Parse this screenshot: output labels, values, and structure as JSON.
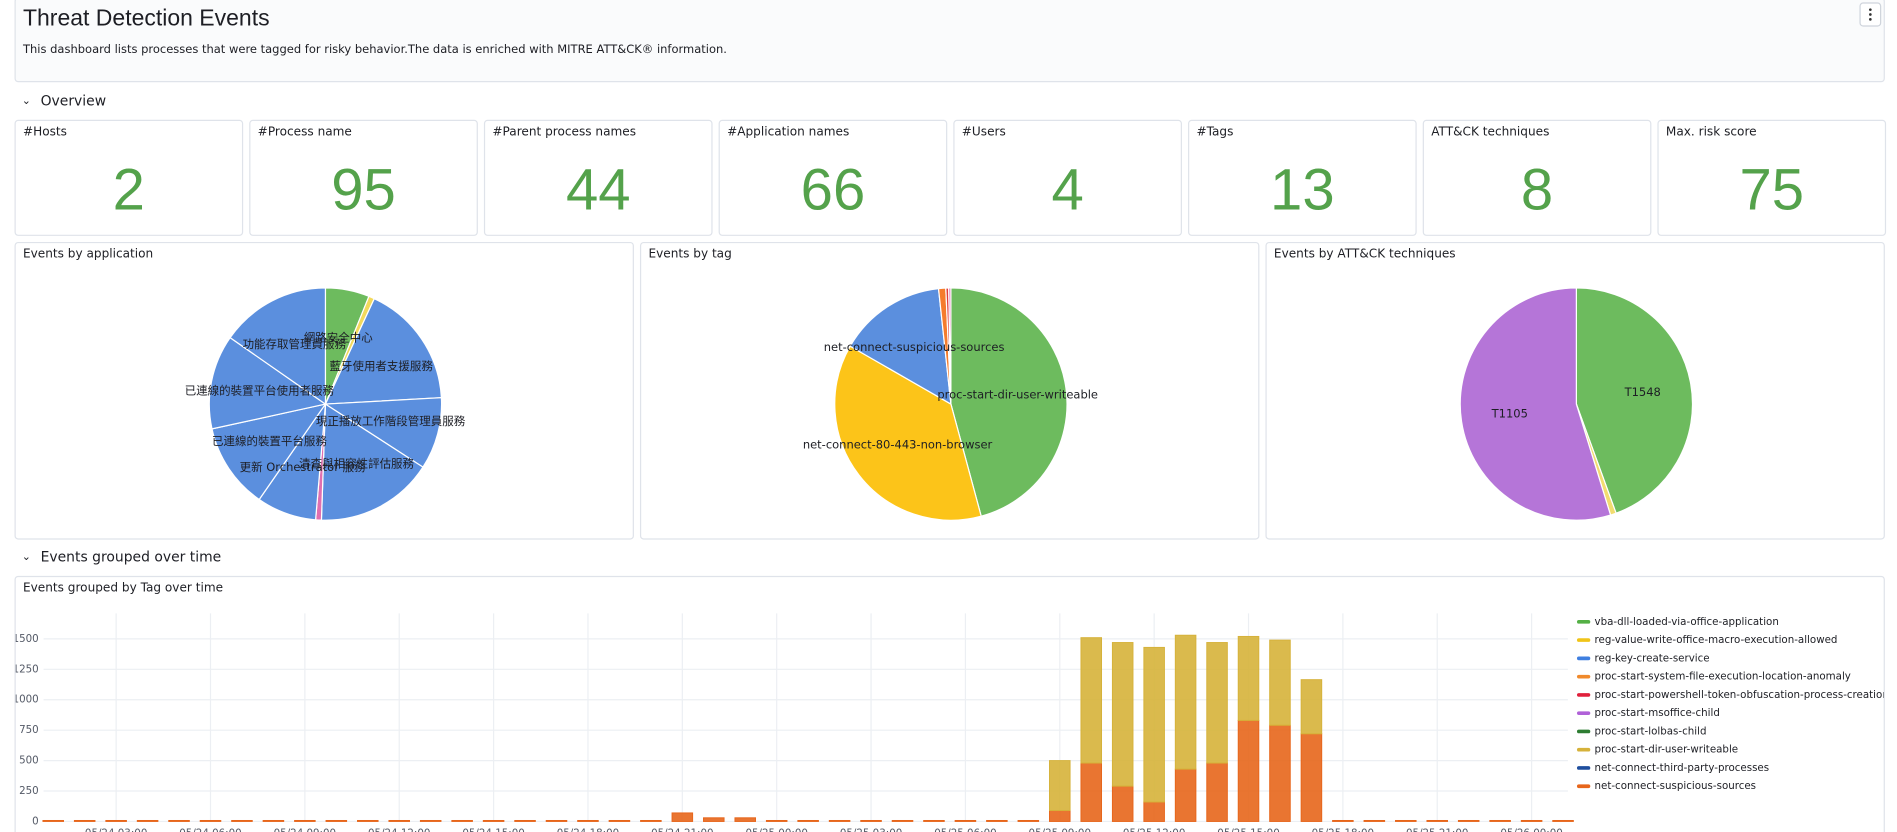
{
  "header": {
    "title": "Threat Detection Events",
    "description": "This dashboard lists processes that were tagged for risky behavior.The data is enriched with MITRE ATT&CK® information."
  },
  "sections": [
    "Overview",
    "Events grouped over time"
  ],
  "stats": [
    {
      "label": "#Hosts",
      "value": 2
    },
    {
      "label": "#Process name",
      "value": 95
    },
    {
      "label": "#Parent process names",
      "value": 44
    },
    {
      "label": "#Application names",
      "value": 66
    },
    {
      "label": "#Users",
      "value": 4
    },
    {
      "label": "#Tags",
      "value": 13
    },
    {
      "label": "ATT&CK techniques",
      "value": 8
    },
    {
      "label": "Max. risk score",
      "value": 75
    }
  ],
  "chart_data": [
    {
      "type": "pie",
      "title": "Events by application",
      "categories": [
        "網路安全中心",
        null,
        "藍牙使用者支援服務",
        "現正播放工作階段管理員服務",
        "清查與相容性評估服務",
        null,
        "更新 Orchestrator 服務",
        "已連線的裝置平台服務",
        "已連線的裝置平台使用者服務",
        "功能存取管理員服務"
      ],
      "values": [
        6.1,
        0.8,
        17.2,
        10,
        16.4,
        0.8,
        8.3,
        11.9,
        13.1,
        15.3
      ],
      "colors": [
        "#6dbb5e",
        "#f2d95c",
        "#5b8fde",
        "#5b8fde",
        "#5b8fde",
        "#e06fb0",
        "#5b8fde",
        "#5b8fde",
        "#5b8fde",
        "#5b8fde"
      ]
    },
    {
      "type": "pie",
      "title": "Events by tag",
      "categories": [
        "proc-start-dir-user-writeable",
        "net-connect-80-443-non-browser",
        "net-connect-suspicious-sources",
        null,
        null,
        null
      ],
      "values": [
        45.8,
        37.5,
        15,
        1,
        0.4,
        0.3
      ],
      "colors": [
        "#6dbb5e",
        "#fcc419",
        "#5b8fde",
        "#f57c2d",
        "#e03e3e",
        "#e06fb0"
      ]
    },
    {
      "type": "pie",
      "title": "Events by ATT&CK techniques",
      "categories": [
        "T1548",
        null,
        "T1105"
      ],
      "values": [
        44.4,
        0.8,
        54.7
      ],
      "colors": [
        "#6dbb5e",
        "#f2dc70",
        "#b575d8"
      ]
    },
    {
      "type": "bar",
      "stacked": true,
      "title": "Events grouped by Tag over time",
      "categories": [
        null,
        null,
        "05/24 03:00",
        null,
        null,
        "05/24 06:00",
        null,
        null,
        "05/24 09:00",
        null,
        null,
        "05/24 12:00",
        null,
        null,
        "05/24 15:00",
        null,
        null,
        "05/24 18:00",
        null,
        null,
        "05/24 21:00",
        null,
        null,
        "05/25 00:00",
        null,
        null,
        "05/25 03:00",
        null,
        null,
        "05/25 06:00",
        null,
        null,
        "05/25 09:00",
        null,
        null,
        "05/25 12:00",
        null,
        null,
        "05/25 15:00",
        null,
        null,
        "05/25 18:00",
        null,
        null,
        "05/25 21:00",
        null,
        null,
        "05/26 00:00",
        null
      ],
      "series": [
        {
          "name": "vba-dll-loaded-via-office-application",
          "color": "#54b045",
          "values": [
            0,
            0,
            0,
            0,
            0,
            0,
            0,
            0,
            0,
            0,
            0,
            0,
            0,
            0,
            0,
            0,
            0,
            0,
            0,
            0,
            0,
            0,
            0,
            0,
            0,
            0,
            0,
            0,
            0,
            0,
            0,
            0,
            0,
            0,
            0,
            0,
            0,
            0,
            0,
            0,
            0,
            0,
            0,
            0,
            0,
            0,
            0,
            0,
            0
          ]
        },
        {
          "name": "reg-value-write-office-macro-execution-allowed",
          "color": "#f0c419",
          "values": [
            0,
            0,
            0,
            0,
            0,
            0,
            0,
            0,
            0,
            0,
            0,
            0,
            0,
            0,
            0,
            0,
            0,
            0,
            0,
            0,
            0,
            0,
            0,
            0,
            0,
            0,
            0,
            0,
            0,
            0,
            0,
            0,
            0,
            0,
            0,
            0,
            0,
            0,
            0,
            0,
            0,
            0,
            0,
            0,
            0,
            0,
            0,
            0,
            0
          ]
        },
        {
          "name": "reg-key-create-service",
          "color": "#3f7fe0",
          "values": [
            0,
            0,
            0,
            0,
            0,
            0,
            0,
            0,
            0,
            0,
            0,
            0,
            0,
            0,
            0,
            0,
            0,
            0,
            0,
            0,
            0,
            0,
            0,
            0,
            0,
            0,
            0,
            0,
            0,
            0,
            0,
            0,
            0,
            0,
            0,
            0,
            0,
            0,
            0,
            0,
            0,
            0,
            0,
            0,
            0,
            0,
            0,
            0,
            0
          ]
        },
        {
          "name": "proc-start-system-file-execution-location-anomaly",
          "color": "#f08a2c",
          "values": [
            0,
            0,
            0,
            0,
            0,
            0,
            0,
            0,
            0,
            0,
            0,
            0,
            0,
            0,
            0,
            0,
            0,
            0,
            0,
            0,
            0,
            0,
            0,
            0,
            0,
            0,
            0,
            0,
            0,
            0,
            0,
            0,
            0,
            0,
            0,
            0,
            0,
            0,
            0,
            0,
            0,
            0,
            0,
            0,
            0,
            0,
            0,
            0,
            0
          ]
        },
        {
          "name": "proc-start-powershell-token-obfuscation-process-creation",
          "color": "#e0203c",
          "values": [
            0,
            0,
            0,
            0,
            0,
            0,
            0,
            0,
            0,
            0,
            0,
            0,
            0,
            0,
            0,
            0,
            0,
            0,
            0,
            0,
            0,
            0,
            0,
            0,
            0,
            0,
            0,
            0,
            0,
            0,
            0,
            0,
            0,
            0,
            0,
            0,
            0,
            0,
            0,
            0,
            0,
            0,
            0,
            0,
            0,
            0,
            0,
            0,
            0
          ]
        },
        {
          "name": "proc-start-msoffice-child",
          "color": "#b061d8",
          "values": [
            0,
            0,
            0,
            0,
            0,
            0,
            0,
            0,
            0,
            0,
            0,
            0,
            0,
            0,
            0,
            0,
            0,
            0,
            0,
            0,
            0,
            0,
            0,
            0,
            0,
            0,
            0,
            0,
            0,
            0,
            0,
            0,
            0,
            0,
            0,
            0,
            0,
            0,
            0,
            0,
            0,
            0,
            0,
            0,
            0,
            0,
            0,
            0,
            0
          ]
        },
        {
          "name": "proc-start-lolbas-child",
          "color": "#2e7d32",
          "values": [
            0,
            0,
            0,
            0,
            0,
            0,
            0,
            0,
            0,
            0,
            0,
            0,
            0,
            0,
            0,
            0,
            0,
            0,
            0,
            0,
            0,
            0,
            0,
            0,
            0,
            0,
            0,
            0,
            0,
            0,
            0,
            0,
            0,
            0,
            0,
            0,
            0,
            0,
            0,
            0,
            0,
            0,
            0,
            0,
            0,
            0,
            0,
            0,
            0
          ]
        },
        {
          "name": "proc-start-dir-user-writeable",
          "color": "#d6b23a",
          "values": [
            0,
            0,
            0,
            0,
            0,
            0,
            0,
            0,
            0,
            0,
            0,
            0,
            0,
            0,
            0,
            0,
            0,
            0,
            0,
            0,
            0,
            0,
            0,
            0,
            0,
            0,
            0,
            0,
            0,
            0,
            0,
            0,
            410,
            1030,
            1180,
            1270,
            1100,
            990,
            690,
            700,
            445,
            0,
            0,
            0,
            0,
            0,
            0,
            0,
            0
          ]
        },
        {
          "name": "net-connect-third-party-processes",
          "color": "#1f4e9e",
          "values": [
            0,
            0,
            0,
            0,
            0,
            0,
            0,
            0,
            0,
            0,
            0,
            0,
            0,
            0,
            0,
            0,
            0,
            0,
            0,
            0,
            0,
            0,
            0,
            0,
            0,
            0,
            0,
            0,
            0,
            0,
            0,
            0,
            0,
            0,
            0,
            0,
            0,
            0,
            0,
            0,
            0,
            0,
            0,
            0,
            0,
            0,
            0,
            0,
            0
          ]
        },
        {
          "name": "net-connect-suspicious-sources",
          "color": "#e7661b",
          "values": [
            8,
            8,
            8,
            8,
            8,
            8,
            8,
            8,
            8,
            8,
            8,
            8,
            8,
            8,
            8,
            8,
            8,
            8,
            8,
            8,
            70,
            30,
            30,
            8,
            8,
            8,
            8,
            8,
            8,
            8,
            8,
            8,
            90,
            480,
            290,
            160,
            430,
            480,
            830,
            790,
            720,
            8,
            8,
            8,
            8,
            8,
            8,
            8,
            8
          ]
        }
      ],
      "ylim": [
        0,
        1650
      ],
      "yticks": [
        0,
        250,
        500,
        750,
        1000,
        1250,
        1500
      ],
      "grid": true,
      "legend": "right"
    }
  ]
}
